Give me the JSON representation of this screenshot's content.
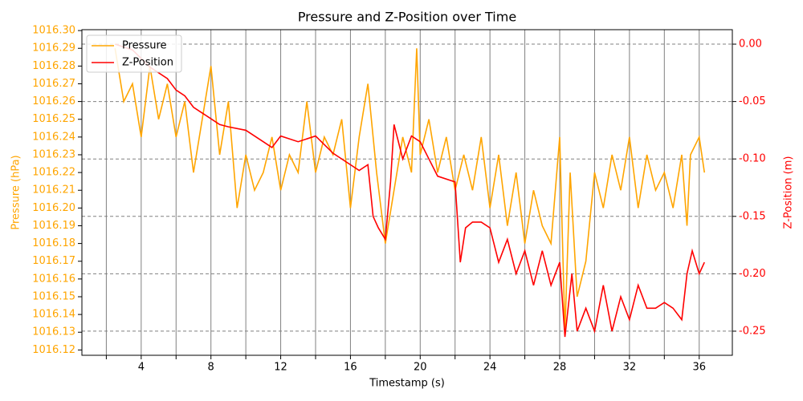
{
  "chart_data": {
    "type": "line",
    "title": "Pressure and Z-Position over Time",
    "x_label": "Timestamp (s)",
    "y_label": "Pressure (hPa)",
    "y2_label": "Z-Position (m)",
    "xlim": [
      0.6,
      37.9
    ],
    "xticks": [
      4,
      8,
      12,
      16,
      20,
      24,
      28,
      32,
      36
    ],
    "x_minor_ticks": [
      2,
      6,
      10,
      14,
      18,
      22,
      26,
      30,
      34
    ],
    "ylim": [
      1016.117,
      1016.3005
    ],
    "yticks": [
      1016.12,
      1016.13,
      1016.14,
      1016.15,
      1016.16,
      1016.17,
      1016.18,
      1016.19,
      {
        "value": 1016.2,
        "label": "1016.20"
      },
      1016.21,
      1016.22,
      1016.23,
      1016.24,
      1016.25,
      1016.26,
      1016.27,
      1016.28,
      1016.29,
      {
        "value": 1016.3,
        "label": "1016.30"
      }
    ],
    "y2lim": [
      -0.271,
      0.0126
    ],
    "y2ticks": [
      {
        "value": 0,
        "label": "0.00"
      },
      -0.05,
      {
        "value": -0.1,
        "label": "-0.10"
      },
      -0.15,
      {
        "value": -0.2,
        "label": "-0.20"
      },
      -0.25
    ],
    "grid": true,
    "legend": "upper left",
    "series": [
      {
        "name": "Pressure",
        "color": "#ffa500",
        "x": [
          2.5,
          3.0,
          3.5,
          4.0,
          4.5,
          5.0,
          5.5,
          6.0,
          6.5,
          7.0,
          7.5,
          8.0,
          8.5,
          9.0,
          9.5,
          10.0,
          10.5,
          11.0,
          11.5,
          12.0,
          12.5,
          13.0,
          13.5,
          14.0,
          14.5,
          15.0,
          15.5,
          16.0,
          16.5,
          17.0,
          17.5,
          18.0,
          18.5,
          19.0,
          19.5,
          19.8,
          20.0,
          20.5,
          21.0,
          21.5,
          22.0,
          22.5,
          23.0,
          23.5,
          24.0,
          24.5,
          25.0,
          25.5,
          26.0,
          26.5,
          27.0,
          27.5,
          28.0,
          28.3,
          28.6,
          29.0,
          29.5,
          30.0,
          30.5,
          31.0,
          31.5,
          32.0,
          32.5,
          33.0,
          33.5,
          34.0,
          34.5,
          35.0,
          35.3,
          35.5,
          36.0,
          36.3
        ],
        "values": [
          1016.29,
          1016.26,
          1016.27,
          1016.24,
          1016.28,
          1016.25,
          1016.27,
          1016.24,
          1016.26,
          1016.22,
          1016.25,
          1016.28,
          1016.23,
          1016.26,
          1016.2,
          1016.23,
          1016.21,
          1016.22,
          1016.24,
          1016.21,
          1016.23,
          1016.22,
          1016.26,
          1016.22,
          1016.24,
          1016.23,
          1016.25,
          1016.2,
          1016.24,
          1016.27,
          1016.22,
          1016.18,
          1016.21,
          1016.24,
          1016.22,
          1016.29,
          1016.23,
          1016.25,
          1016.22,
          1016.24,
          1016.21,
          1016.23,
          1016.21,
          1016.24,
          1016.2,
          1016.23,
          1016.19,
          1016.22,
          1016.18,
          1016.21,
          1016.19,
          1016.18,
          1016.24,
          1016.13,
          1016.22,
          1016.15,
          1016.17,
          1016.22,
          1016.2,
          1016.23,
          1016.21,
          1016.24,
          1016.2,
          1016.23,
          1016.21,
          1016.22,
          1016.2,
          1016.23,
          1016.19,
          1016.23,
          1016.24,
          1016.22
        ]
      },
      {
        "name": "Z-Position",
        "color": "#ff0000",
        "axis": "y2",
        "x": [
          2.5,
          3.5,
          4.5,
          5.5,
          6.0,
          6.5,
          7.0,
          7.5,
          8.0,
          8.5,
          9.0,
          10.0,
          11.0,
          11.5,
          12.0,
          13.0,
          14.0,
          15.0,
          16.0,
          16.5,
          17.0,
          17.3,
          17.6,
          18.0,
          18.3,
          18.5,
          19.0,
          19.5,
          20.0,
          20.5,
          21.0,
          22.0,
          22.3,
          22.6,
          23.0,
          23.5,
          24.0,
          24.5,
          25.0,
          25.5,
          26.0,
          26.5,
          27.0,
          27.5,
          28.0,
          28.3,
          28.7,
          29.0,
          29.5,
          30.0,
          30.5,
          31.0,
          31.5,
          32.0,
          32.5,
          33.0,
          33.5,
          34.0,
          34.5,
          35.0,
          35.3,
          35.6,
          36.0,
          36.3
        ],
        "values": [
          0,
          -0.005,
          -0.02,
          -0.03,
          -0.04,
          -0.045,
          -0.055,
          -0.06,
          -0.065,
          -0.07,
          -0.072,
          -0.075,
          -0.085,
          -0.09,
          -0.08,
          -0.085,
          -0.08,
          -0.095,
          -0.105,
          -0.11,
          -0.105,
          -0.15,
          -0.16,
          -0.17,
          -0.12,
          -0.07,
          -0.1,
          -0.08,
          -0.085,
          -0.1,
          -0.115,
          -0.12,
          -0.19,
          -0.16,
          -0.155,
          -0.155,
          -0.16,
          -0.19,
          -0.17,
          -0.2,
          -0.18,
          -0.21,
          -0.18,
          -0.21,
          -0.19,
          -0.255,
          -0.2,
          -0.25,
          -0.23,
          -0.25,
          -0.21,
          -0.25,
          -0.22,
          -0.24,
          -0.21,
          -0.23,
          -0.23,
          -0.225,
          -0.23,
          -0.24,
          -0.2,
          -0.18,
          -0.2,
          -0.19
        ]
      }
    ]
  }
}
